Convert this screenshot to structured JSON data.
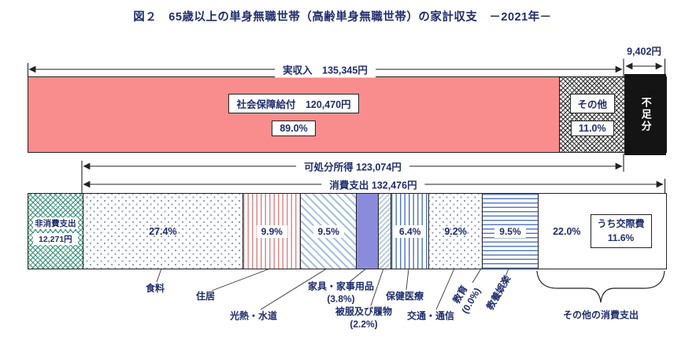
{
  "title": "図２　65歳以上の単身無職世帯（高齢単身無職世帯）の家計収支　－2021年－",
  "colors": {
    "text_navy": "#1f2d6e",
    "income_pink": "#f98d8d",
    "furniture_purple": "#8b8bdc",
    "non_consumption_green": "#2e8f72",
    "stripe_blue": "#5a7cc6",
    "stripe_light_blue": "#a6c0e0",
    "stripe_red": "#de8a8a",
    "deficit_black": "#141414"
  },
  "chart_data": {
    "type": "bar",
    "subtype": "stacked-horizontal-balance",
    "year": "2021",
    "unit": "円",
    "top_bar": {
      "total_arrow_label": "実収入　135,345円",
      "total_value": 135345,
      "deficit_label": "9,402円",
      "deficit_value": 9402,
      "segments": [
        {
          "id": "shakai-hosho-kyufu",
          "name": "社会保障給付",
          "value": 120470,
          "pct": 89.0,
          "pattern": "solid-pink",
          "chips": [
            "社会保障給付　120,470円",
            "89.0%"
          ]
        },
        {
          "id": "sonota-income",
          "name": "その他",
          "value": 14875,
          "pct": 11.0,
          "pattern": "hatch-dark",
          "chips": [
            "その他",
            "11.0%"
          ]
        },
        {
          "id": "fusokubun",
          "name": "不足分",
          "value": 9402,
          "pattern": "solid-black",
          "vlabel": "不足分",
          "tall": true
        }
      ]
    },
    "middle_arrows": {
      "disposable": "可処分所得 123,074円",
      "disposable_value": 123074,
      "consumption": "消費支出 132,476円",
      "consumption_value": 132476
    },
    "bottom_bar": {
      "segments": [
        {
          "id": "hi-shohi-shishutsu",
          "name": "非消費支出",
          "value": 12271,
          "pattern": "hatch-green",
          "lines": [
            "非消費支出",
            "12,271円"
          ]
        },
        {
          "id": "shokuryo",
          "name": "食料",
          "value": 36298,
          "pct": 27.4,
          "pattern": "dots",
          "plain": "27.4%"
        },
        {
          "id": "jukyo",
          "name": "住居",
          "value": 13115,
          "pct": 9.9,
          "pattern": "vstripe-red",
          "pchip": "9.9%"
        },
        {
          "id": "konetsu-suido",
          "name": "光熱・水道",
          "value": 12585,
          "pct": 9.5,
          "pattern": "diag-blue",
          "pchip": "9.5%"
        },
        {
          "id": "kagu-kajiyohin",
          "name": "家具・家事用品",
          "value": 5034,
          "pct": 3.8,
          "pattern": "solid-purple"
        },
        {
          "id": "hifuku-hakimono",
          "name": "被服及び履物",
          "value": 2914,
          "pct": 2.2,
          "pattern": "diag-fine"
        },
        {
          "id": "hoken-iryo",
          "name": "保健医療",
          "value": 8478,
          "pct": 6.4,
          "pattern": "vstripe-blue",
          "pchip": "6.4%"
        },
        {
          "id": "kotsu-tsushin",
          "name": "交通・通信",
          "value": 12188,
          "pct": 9.2,
          "pattern": "dots",
          "plain": "9.2%"
        },
        {
          "id": "kyoiku",
          "name": "教育",
          "value": 0,
          "pct": 0.0,
          "pattern": "white"
        },
        {
          "id": "kyoyo-goraku",
          "name": "教養娯楽",
          "value": 12585,
          "pct": 9.5,
          "pattern": "hstripe-blue",
          "pchip": "9.5%"
        },
        {
          "id": "sonota-shohi-shishutsu",
          "name": "その他の消費支出",
          "value": 29145,
          "pct": 22.0,
          "pattern": "white",
          "plain": "22.0%",
          "inner_box": [
            "うち交際費",
            "11.6%"
          ]
        }
      ]
    },
    "category_labels": [
      {
        "name": "食料"
      },
      {
        "name": "住居"
      },
      {
        "name": "光熱・水道"
      },
      {
        "name": "家具・家事用品",
        "sub": "(3.8%)"
      },
      {
        "name": "被服及び履物",
        "sub": "(2.2%)"
      },
      {
        "name": "保健医療"
      },
      {
        "name": "交通・通信"
      },
      {
        "name": "教育",
        "sub": "(0.0%)"
      },
      {
        "name": "教養娯楽"
      },
      {
        "name": "その他の消費支出"
      }
    ]
  }
}
